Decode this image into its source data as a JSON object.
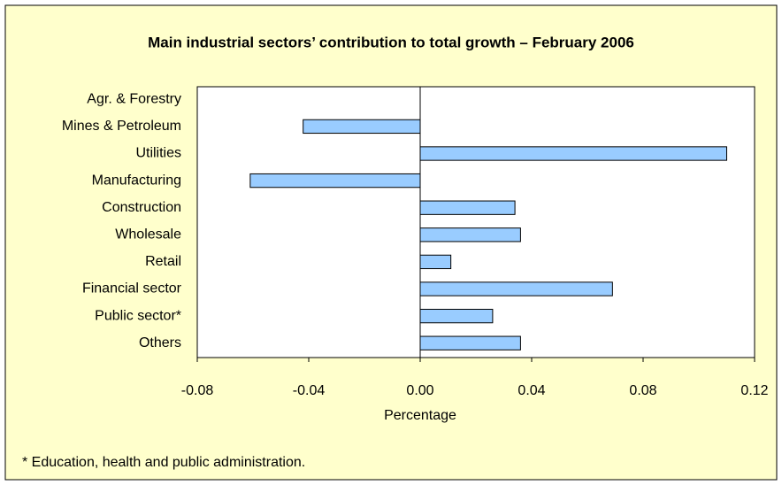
{
  "chart_data": {
    "type": "barh",
    "title": "Main industrial sectors’ contribution to total growth  – February 2006",
    "categories": [
      "Agr. & Forestry",
      "Mines & Petroleum",
      "Utilities",
      "Manufacturing",
      "Construction",
      "Wholesale",
      "Retail",
      "Financial sector",
      "Public sector*",
      "Others"
    ],
    "values": [
      0,
      -0.042,
      0.11,
      -0.061,
      0.034,
      0.036,
      0.011,
      0.069,
      0.026,
      0.036
    ],
    "color": "#99ccff",
    "xlabel": "Percentage",
    "xlim": [
      -0.08,
      0.12
    ],
    "xticks": [
      -0.08,
      -0.04,
      {
        "value": 0,
        "label": "0.00"
      },
      0.04,
      0.08,
      0.12
    ],
    "note": "* Education, health and public administration."
  }
}
